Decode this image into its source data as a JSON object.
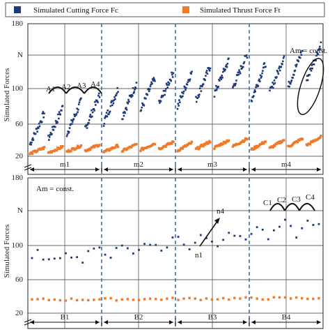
{
  "chart_data": {
    "type": "scatter",
    "legend": {
      "placement": "top",
      "items": [
        {
          "label": "Simulated Cutting Force Fc",
          "color": "#1f3a7a",
          "marker": "square"
        },
        {
          "label": "Simulated Thrust Force Ft",
          "color": "#f07a2a",
          "marker": "square"
        }
      ]
    },
    "panels": [
      {
        "id": "top",
        "ylabel": "Simulated Forces",
        "y_ticks": [
          "180",
          "N",
          "100",
          "60",
          "20"
        ],
        "grid": true,
        "axis_break": true,
        "groups": [
          {
            "label": "m1",
            "ranges": [
              "A1",
              "A2",
              "A3",
              "A4"
            ]
          },
          {
            "label": "m2"
          },
          {
            "label": "m3"
          },
          {
            "label": "m4",
            "annotation": "Am = const."
          }
        ],
        "series": [
          {
            "name": "Fc",
            "trend": "sawtooth",
            "cycles_per_group": [
              4,
              4,
              4,
              4
            ],
            "start_levels": [
              35,
              62,
              80,
              87
            ],
            "end_levels": [
              85,
              112,
              133,
              145
            ]
          },
          {
            "name": "Ft",
            "trend": "sawtooth",
            "cycles_per_group": [
              4,
              4,
              4,
              4
            ],
            "start_levels": [
              23,
              25,
              27,
              28
            ],
            "end_levels": [
              33,
              36,
              40,
              42
            ]
          }
        ]
      },
      {
        "id": "bottom",
        "ylabel": "Simulated Forces",
        "y_ticks": [
          "180",
          "N",
          "100",
          "60",
          "20"
        ],
        "grid": true,
        "axis_break": true,
        "annotation": "Am = const.",
        "groups": [
          {
            "label": "B1"
          },
          {
            "label": "B2"
          },
          {
            "label": "B3",
            "ranges": [
              "n1",
              "n4"
            ]
          },
          {
            "label": "B4",
            "ranges": [
              "C1",
              "C2",
              "C3",
              "C4"
            ]
          }
        ],
        "series": [
          {
            "name": "Fc",
            "trend": "increasing",
            "start": 83,
            "end": 123
          },
          {
            "name": "Ft",
            "trend": "flat",
            "start": 36,
            "end": 38
          }
        ]
      }
    ]
  }
}
